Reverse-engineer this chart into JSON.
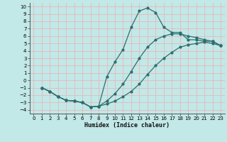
{
  "background_color": "#c2e8e8",
  "grid_color": "#e8b8b8",
  "line_color": "#2a7070",
  "xlabel": "Humidex (Indice chaleur)",
  "xlim": [
    -0.5,
    23.5
  ],
  "ylim": [
    -4.5,
    10.5
  ],
  "xticks": [
    0,
    1,
    2,
    3,
    4,
    5,
    6,
    7,
    8,
    9,
    10,
    11,
    12,
    13,
    14,
    15,
    16,
    17,
    18,
    19,
    20,
    21,
    22,
    23
  ],
  "yticks": [
    -4,
    -3,
    -2,
    -1,
    0,
    1,
    2,
    3,
    4,
    5,
    6,
    7,
    8,
    9,
    10
  ],
  "curve1_x": [
    1,
    2,
    3,
    4,
    5,
    6,
    7,
    8,
    9,
    10,
    11,
    12,
    13,
    14,
    15,
    16,
    17,
    18,
    19,
    20,
    21,
    22,
    23
  ],
  "curve1_y": [
    -1.0,
    -1.5,
    -2.2,
    -2.7,
    -2.8,
    -3.0,
    -3.6,
    -3.5,
    -3.2,
    -2.8,
    -2.2,
    -1.5,
    -0.5,
    0.8,
    2.0,
    3.0,
    3.8,
    4.5,
    4.8,
    5.0,
    5.2,
    5.0,
    4.7
  ],
  "curve2_x": [
    1,
    2,
    3,
    4,
    5,
    6,
    7,
    8,
    9,
    10,
    11,
    12,
    13,
    14,
    15,
    16,
    17,
    18,
    19,
    20,
    21,
    22,
    23
  ],
  "curve2_y": [
    -1.0,
    -1.5,
    -2.2,
    -2.7,
    -2.8,
    -3.0,
    -3.6,
    -3.5,
    0.5,
    2.5,
    4.2,
    7.2,
    9.4,
    9.8,
    9.2,
    7.2,
    6.5,
    6.5,
    5.5,
    5.5,
    5.3,
    5.3,
    4.7
  ],
  "curve3_x": [
    1,
    2,
    3,
    4,
    5,
    6,
    7,
    8,
    9,
    10,
    11,
    12,
    13,
    14,
    15,
    16,
    17,
    18,
    19,
    20,
    21,
    22,
    23
  ],
  "curve3_y": [
    -1.0,
    -1.5,
    -2.2,
    -2.7,
    -2.8,
    -3.0,
    -3.6,
    -3.5,
    -2.8,
    -1.8,
    -0.5,
    1.2,
    3.0,
    4.5,
    5.5,
    6.0,
    6.3,
    6.3,
    6.0,
    5.8,
    5.5,
    5.3,
    4.7
  ]
}
